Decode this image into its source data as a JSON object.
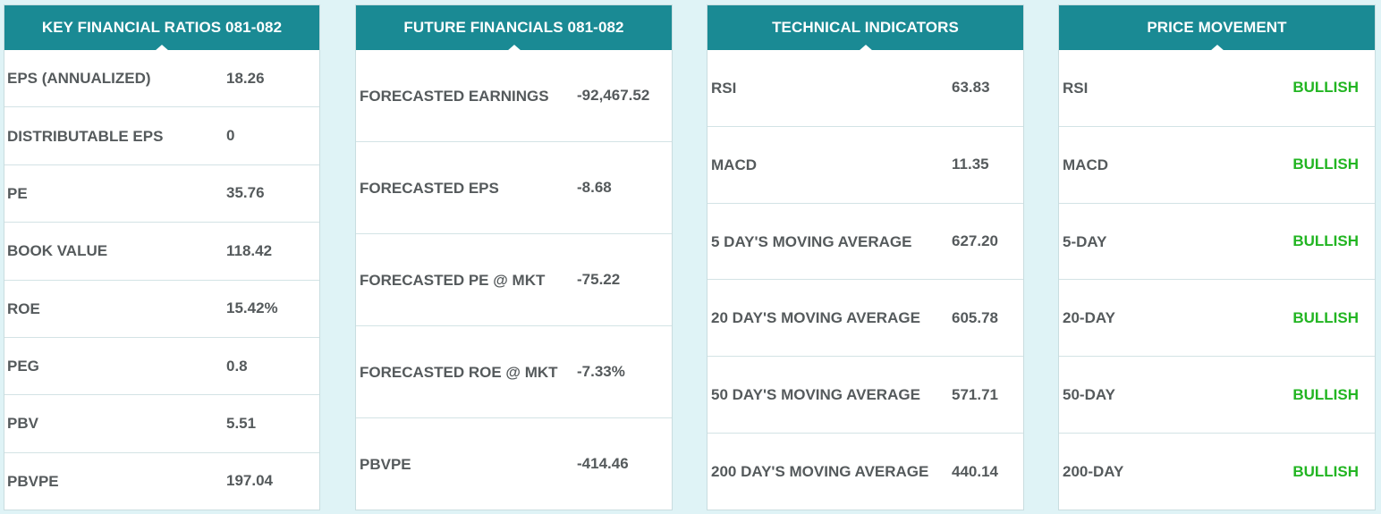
{
  "key_financial_ratios": {
    "title": "KEY FINANCIAL RATIOS 081-082",
    "rows": [
      {
        "label": "EPS (ANNUALIZED)",
        "value": "18.26"
      },
      {
        "label": "DISTRIBUTABLE EPS",
        "value": "0"
      },
      {
        "label": "PE",
        "value": "35.76"
      },
      {
        "label": "BOOK VALUE",
        "value": "118.42"
      },
      {
        "label": "ROE",
        "value": "15.42%"
      },
      {
        "label": "PEG",
        "value": "0.8"
      },
      {
        "label": "PBV",
        "value": "5.51"
      },
      {
        "label": "PBVPE",
        "value": "197.04"
      }
    ]
  },
  "future_financials": {
    "title": "FUTURE FINANCIALS 081-082",
    "rows": [
      {
        "label": "FORECASTED EARNINGS",
        "value": "-92,467.52"
      },
      {
        "label": "FORECASTED EPS",
        "value": "-8.68"
      },
      {
        "label": "FORECASTED PE @ MKT",
        "value": "-75.22"
      },
      {
        "label": "FORECASTED ROE @ MKT",
        "value": "-7.33%"
      },
      {
        "label": "PBVPE",
        "value": "-414.46"
      }
    ]
  },
  "technical_indicators": {
    "title": "TECHNICAL INDICATORS",
    "rows": [
      {
        "label": "RSI",
        "value": "63.83"
      },
      {
        "label": "MACD",
        "value": "11.35"
      },
      {
        "label": "5 DAY'S MOVING AVERAGE",
        "value": "627.20"
      },
      {
        "label": "20 DAY'S MOVING AVERAGE",
        "value": "605.78"
      },
      {
        "label": "50 DAY'S MOVING AVERAGE",
        "value": "571.71"
      },
      {
        "label": "200 DAY'S MOVING AVERAGE",
        "value": "440.14"
      }
    ]
  },
  "price_movement": {
    "title": "PRICE MOVEMENT",
    "rows": [
      {
        "label": "RSI",
        "value": "BULLISH"
      },
      {
        "label": "MACD",
        "value": "BULLISH"
      },
      {
        "label": "5-DAY",
        "value": "BULLISH"
      },
      {
        "label": "20-DAY",
        "value": "BULLISH"
      },
      {
        "label": "50-DAY",
        "value": "BULLISH"
      },
      {
        "label": "200-DAY",
        "value": "BULLISH"
      }
    ]
  },
  "colors": {
    "header_bg": "#1a8a94",
    "bullish": "#22b522",
    "page_bg": "#dff3f6"
  }
}
